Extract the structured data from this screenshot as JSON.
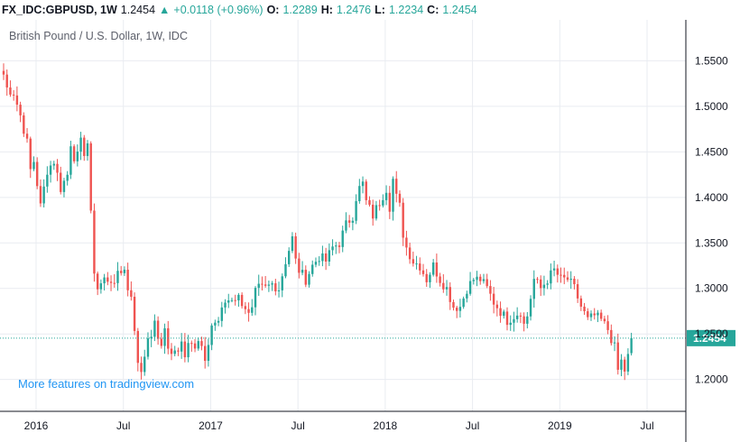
{
  "header": {
    "symbol": "FX_IDC:GBPUSD, 1W",
    "last": "1.2454",
    "change": "+0.0118 (+0.96%)",
    "open_label": "O:",
    "open": "1.2289",
    "high_label": "H:",
    "high": "1.2476",
    "low_label": "L:",
    "low": "1.2234",
    "close_label": "C:",
    "close": "1.2454"
  },
  "promo": "More features on tradingview.com",
  "colors": {
    "up": "#26a69a",
    "down": "#ef5350",
    "grid": "#e9ecf1",
    "price_line": "#26a69a"
  },
  "chart_data": {
    "type": "candlestick",
    "title": "British Pound / U.S. Dollar, 1W, IDC",
    "ylim": [
      1.165,
      1.595
    ],
    "yticks": [
      1.55,
      1.5,
      1.45,
      1.4,
      1.35,
      1.3,
      1.25,
      1.2
    ],
    "ytick_labels": [
      "1.5500",
      "1.5000",
      "1.4500",
      "1.4000",
      "1.3500",
      "1.3000",
      "1.2500",
      "1.2000"
    ],
    "xticks": [
      {
        "label": "2016",
        "week": 0
      },
      {
        "label": "Jul",
        "week": 26
      },
      {
        "label": "2017",
        "week": 52
      },
      {
        "label": "Jul",
        "week": 78
      },
      {
        "label": "2018",
        "week": 104
      },
      {
        "label": "Jul",
        "week": 130
      },
      {
        "label": "2019",
        "week": 156
      },
      {
        "label": "Jul",
        "week": 182
      }
    ],
    "current_price": 1.2454,
    "current_price_label": "1.2454",
    "anchors": [
      [
        0,
        1.535
      ],
      [
        1,
        1.52
      ],
      [
        3,
        1.515
      ],
      [
        5,
        1.49
      ],
      [
        7,
        1.46
      ],
      [
        8,
        1.43
      ],
      [
        9,
        1.44
      ],
      [
        10,
        1.415
      ],
      [
        11,
        1.39
      ],
      [
        13,
        1.43
      ],
      [
        15,
        1.44
      ],
      [
        16,
        1.425
      ],
      [
        17,
        1.41
      ],
      [
        19,
        1.425
      ],
      [
        20,
        1.46
      ],
      [
        21,
        1.445
      ],
      [
        22,
        1.445
      ],
      [
        23,
        1.46
      ],
      [
        24,
        1.45
      ],
      [
        25,
        1.46
      ],
      [
        26,
        1.38
      ],
      [
        27,
        1.32
      ],
      [
        28,
        1.3
      ],
      [
        30,
        1.31
      ],
      [
        32,
        1.31
      ],
      [
        33,
        1.3
      ],
      [
        34,
        1.32
      ],
      [
        35,
        1.32
      ],
      [
        36,
        1.32
      ],
      [
        37,
        1.3
      ],
      [
        38,
        1.295
      ],
      [
        39,
        1.25
      ],
      [
        40,
        1.22
      ],
      [
        41,
        1.21
      ],
      [
        42,
        1.23
      ],
      [
        43,
        1.24
      ],
      [
        44,
        1.25
      ],
      [
        45,
        1.26
      ],
      [
        46,
        1.245
      ],
      [
        47,
        1.24
      ],
      [
        48,
        1.255
      ],
      [
        49,
        1.235
      ],
      [
        50,
        1.225
      ],
      [
        51,
        1.23
      ],
      [
        52,
        1.235
      ],
      [
        53,
        1.245
      ],
      [
        54,
        1.225
      ],
      [
        55,
        1.245
      ],
      [
        56,
        1.245
      ],
      [
        57,
        1.235
      ],
      [
        58,
        1.24
      ],
      [
        59,
        1.235
      ],
      [
        60,
        1.215
      ],
      [
        61,
        1.24
      ],
      [
        62,
        1.26
      ],
      [
        64,
        1.265
      ],
      [
        66,
        1.285
      ],
      [
        68,
        1.29
      ],
      [
        70,
        1.29
      ],
      [
        72,
        1.28
      ],
      [
        73,
        1.27
      ],
      [
        74,
        1.275
      ],
      [
        75,
        1.295
      ],
      [
        76,
        1.3
      ],
      [
        78,
        1.3
      ],
      [
        80,
        1.305
      ],
      [
        82,
        1.3
      ],
      [
        84,
        1.33
      ],
      [
        86,
        1.355
      ],
      [
        87,
        1.33
      ],
      [
        88,
        1.32
      ],
      [
        90,
        1.31
      ],
      [
        92,
        1.325
      ],
      [
        94,
        1.335
      ],
      [
        96,
        1.33
      ],
      [
        98,
        1.345
      ],
      [
        100,
        1.35
      ],
      [
        102,
        1.37
      ],
      [
        104,
        1.38
      ],
      [
        105,
        1.4
      ],
      [
        106,
        1.41
      ],
      [
        107,
        1.415
      ],
      [
        108,
        1.395
      ],
      [
        110,
        1.38
      ],
      [
        112,
        1.395
      ],
      [
        114,
        1.41
      ],
      [
        115,
        1.39
      ],
      [
        116,
        1.42
      ],
      [
        117,
        1.4
      ],
      [
        118,
        1.39
      ],
      [
        119,
        1.36
      ],
      [
        120,
        1.345
      ],
      [
        122,
        1.33
      ],
      [
        124,
        1.325
      ],
      [
        126,
        1.31
      ],
      [
        128,
        1.325
      ],
      [
        130,
        1.31
      ],
      [
        132,
        1.3
      ],
      [
        134,
        1.28
      ],
      [
        136,
        1.28
      ],
      [
        138,
        1.3
      ],
      [
        140,
        1.31
      ],
      [
        142,
        1.31
      ],
      [
        144,
        1.3
      ],
      [
        146,
        1.285
      ],
      [
        148,
        1.275
      ],
      [
        150,
        1.265
      ],
      [
        152,
        1.27
      ],
      [
        154,
        1.275
      ],
      [
        155,
        1.26
      ],
      [
        156,
        1.27
      ],
      [
        157,
        1.29
      ],
      [
        158,
        1.31
      ],
      [
        160,
        1.3
      ],
      [
        162,
        1.31
      ],
      [
        164,
        1.32
      ],
      [
        166,
        1.31
      ],
      [
        168,
        1.31
      ],
      [
        170,
        1.3
      ],
      [
        172,
        1.28
      ],
      [
        174,
        1.265
      ],
      [
        176,
        1.27
      ],
      [
        178,
        1.265
      ],
      [
        180,
        1.255
      ],
      [
        182,
        1.235
      ],
      [
        183,
        1.21
      ],
      [
        184,
        1.22
      ],
      [
        185,
        1.21
      ],
      [
        186,
        1.225
      ],
      [
        187,
        1.2454
      ]
    ]
  }
}
